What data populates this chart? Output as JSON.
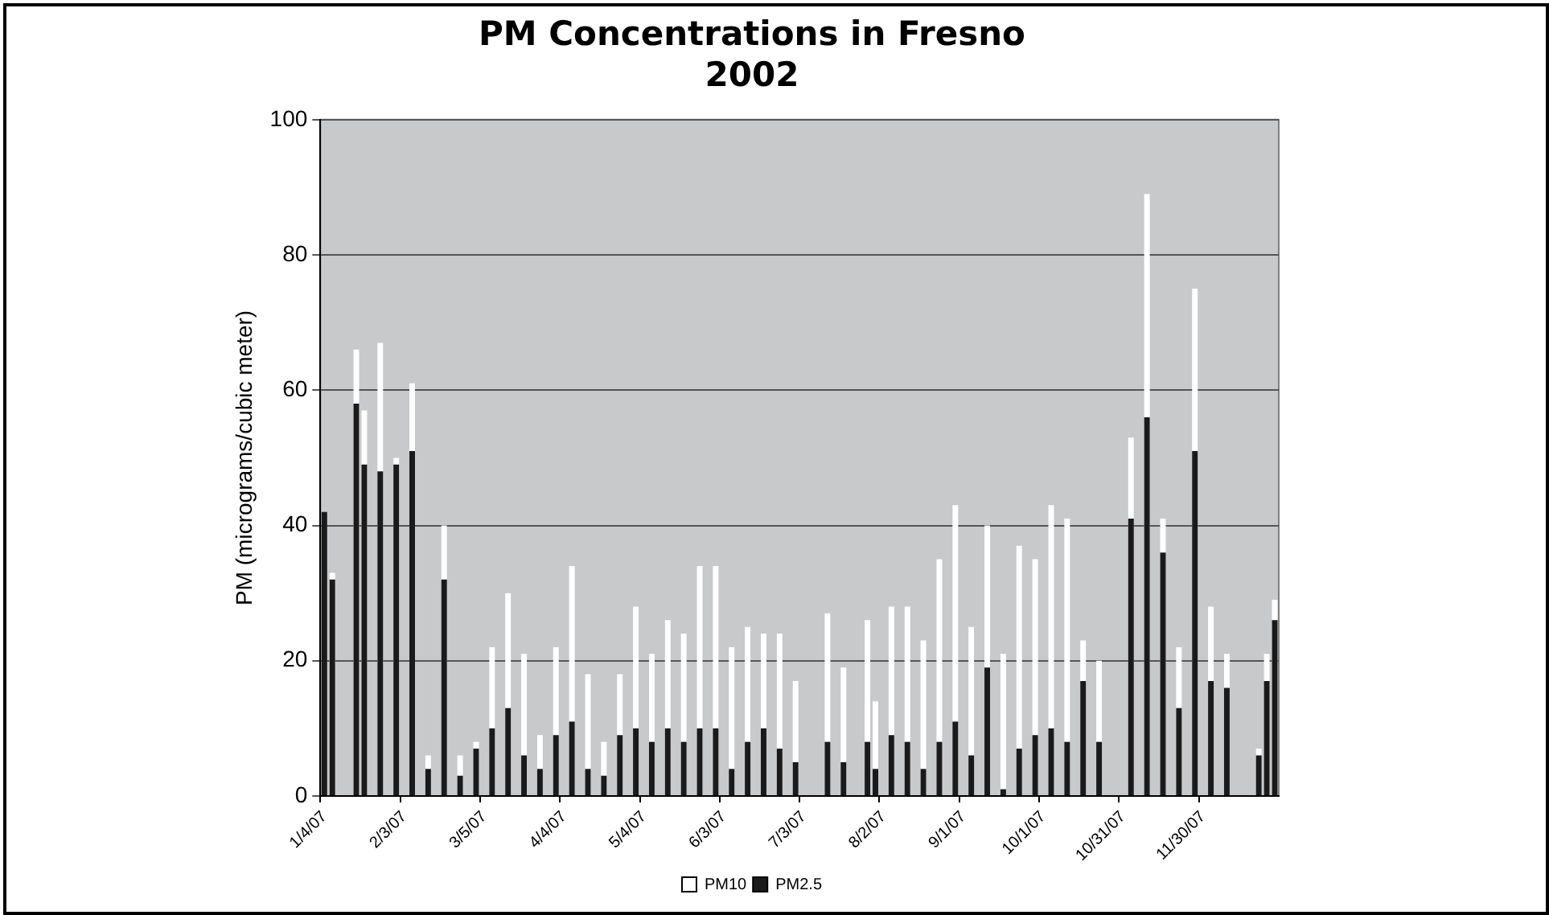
{
  "chart_data": {
    "type": "bar",
    "title": "PM Concentrations in Fresno\n2002",
    "ylabel": "PM (micrograms/cubic meter)",
    "categories": [
      "1/4/07",
      null,
      null,
      null,
      null,
      null,
      null,
      null,
      null,
      null,
      "2/3/07",
      null,
      null,
      null,
      null,
      null,
      null,
      null,
      null,
      null,
      "3/5/07",
      null,
      null,
      null,
      null,
      null,
      null,
      null,
      null,
      null,
      "4/4/07",
      null,
      null,
      null,
      null,
      null,
      null,
      null,
      null,
      null,
      "5/4/07",
      null,
      null,
      null,
      null,
      null,
      null,
      null,
      null,
      null,
      "6/3/07",
      null,
      null,
      null,
      null,
      null,
      null,
      null,
      null,
      null,
      "7/3/07",
      null,
      null,
      null,
      null,
      null,
      null,
      null,
      null,
      null,
      "8/2/07",
      null,
      null,
      null,
      null,
      null,
      null,
      null,
      null,
      null,
      "9/1/07",
      null,
      null,
      null,
      null,
      null,
      null,
      null,
      null,
      null,
      "10/1/07",
      null,
      null,
      null,
      null,
      null,
      null,
      null,
      null,
      null,
      "10/31/07",
      null,
      null,
      null,
      null,
      null,
      null,
      null,
      null,
      null,
      "11/30/07",
      null,
      null,
      null,
      null,
      null,
      null,
      null,
      null,
      null
    ],
    "series": [
      {
        "name": "PM10",
        "color": "#ffffff",
        "values": [
          null,
          33,
          null,
          null,
          66,
          57,
          null,
          67,
          null,
          50,
          null,
          61,
          null,
          6,
          null,
          40,
          null,
          6,
          null,
          8,
          null,
          22,
          null,
          30,
          null,
          21,
          null,
          9,
          null,
          22,
          null,
          34,
          null,
          18,
          null,
          8,
          null,
          18,
          null,
          28,
          null,
          21,
          null,
          26,
          null,
          24,
          null,
          34,
          null,
          34,
          null,
          22,
          null,
          25,
          null,
          24,
          null,
          24,
          null,
          17,
          null,
          null,
          null,
          27,
          null,
          19,
          null,
          null,
          26,
          14,
          null,
          28,
          null,
          28,
          null,
          23,
          null,
          35,
          null,
          43,
          null,
          25,
          null,
          40,
          null,
          21,
          null,
          37,
          null,
          35,
          null,
          43,
          null,
          41,
          null,
          23,
          null,
          20,
          null,
          null,
          null,
          53,
          null,
          89,
          null,
          41,
          null,
          22,
          null,
          75,
          null,
          28,
          null,
          21,
          null,
          null,
          null,
          7,
          21,
          29
        ]
      },
      {
        "name": "PM2.5",
        "color": "#1a1a1a",
        "values": [
          42,
          32,
          null,
          null,
          58,
          49,
          null,
          48,
          null,
          49,
          null,
          51,
          null,
          4,
          null,
          32,
          null,
          3,
          null,
          7,
          null,
          10,
          null,
          13,
          null,
          6,
          null,
          4,
          null,
          9,
          null,
          11,
          null,
          4,
          null,
          3,
          null,
          9,
          null,
          10,
          null,
          8,
          null,
          10,
          null,
          8,
          null,
          10,
          null,
          10,
          null,
          4,
          null,
          8,
          null,
          10,
          null,
          7,
          null,
          5,
          null,
          null,
          null,
          8,
          null,
          5,
          null,
          null,
          8,
          4,
          null,
          9,
          null,
          8,
          null,
          4,
          null,
          8,
          null,
          11,
          null,
          6,
          null,
          19,
          null,
          1,
          null,
          7,
          null,
          9,
          null,
          10,
          null,
          8,
          null,
          17,
          null,
          8,
          null,
          null,
          null,
          41,
          null,
          56,
          null,
          36,
          null,
          13,
          null,
          51,
          null,
          17,
          null,
          16,
          null,
          null,
          null,
          6,
          17,
          26
        ]
      }
    ],
    "ylim": [
      0,
      100
    ],
    "yticks": [
      0,
      20,
      40,
      60,
      80,
      100
    ],
    "grid": "y",
    "legend": "bottom"
  }
}
